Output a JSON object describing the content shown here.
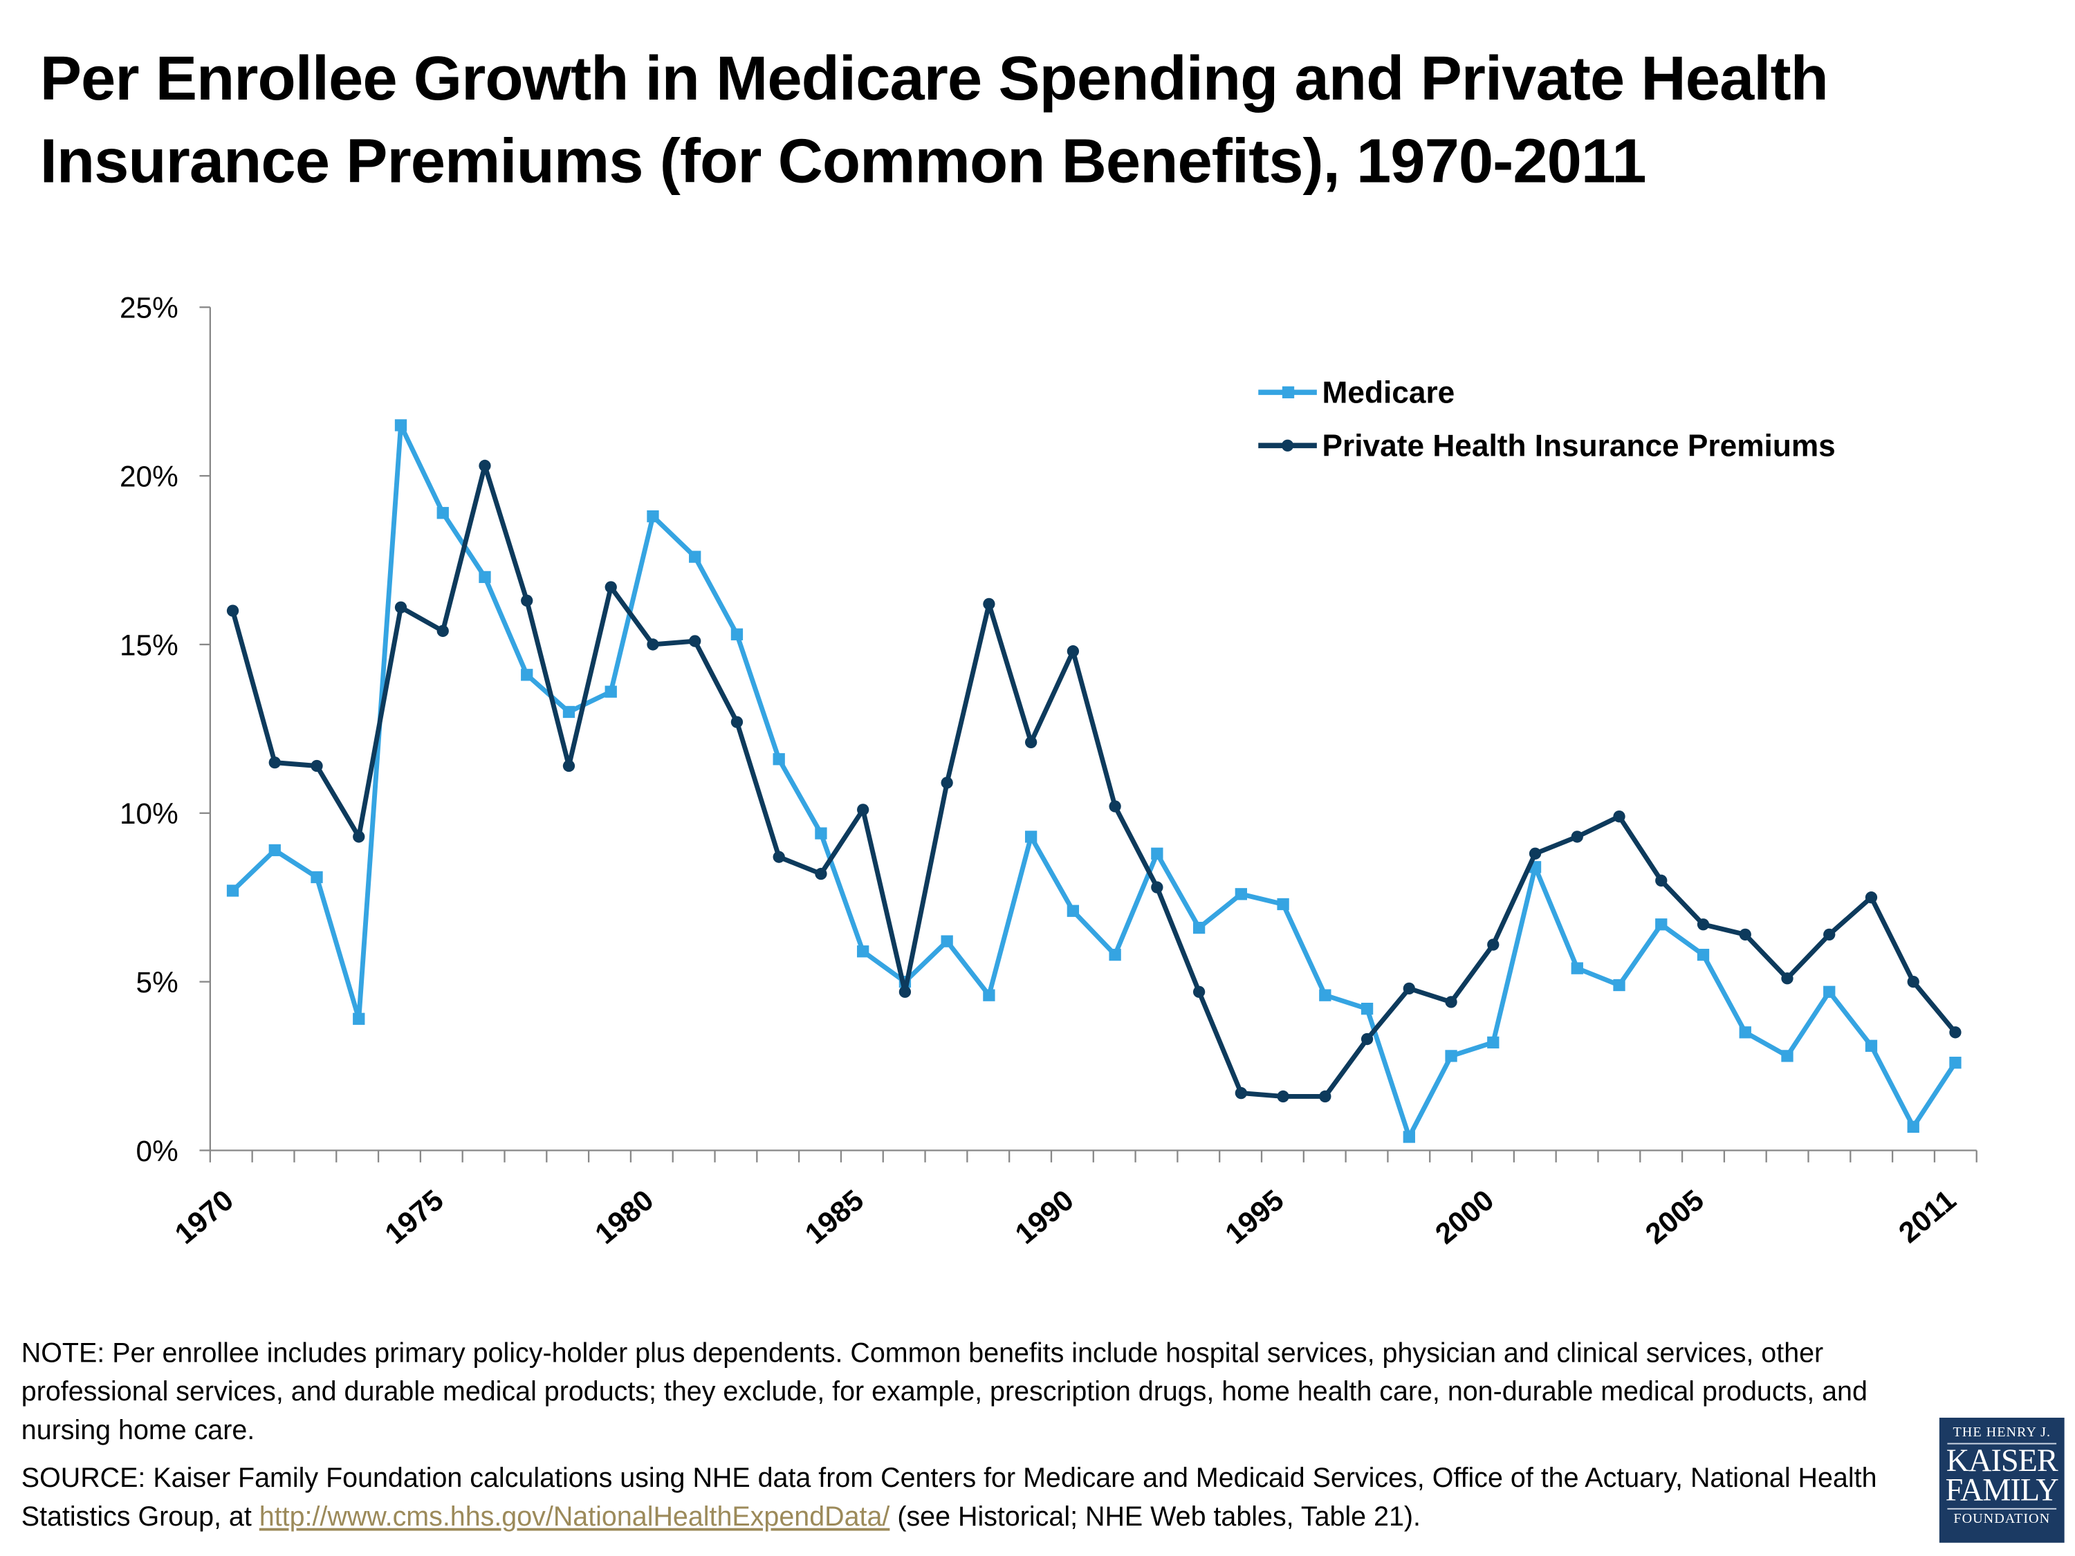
{
  "title": "Per Enrollee Growth in Medicare Spending and Private Health Insurance Premiums (for Common Benefits), 1970-2011",
  "note": "NOTE: Per enrollee includes primary policy-holder plus dependents. Common benefits include hospital services, physician and clinical services, other professional services, and durable medical products; they exclude, for example, prescription drugs, home health care, non-durable medical products, and nursing home care.",
  "source": {
    "prefix": "SOURCE: Kaiser Family Foundation calculations using NHE data from Centers for Medicare and Medicaid Services, Office of the Actuary, National Health Statistics Group, at ",
    "link": "http://www.cms.hhs.gov/NationalHealthExpendData/",
    "suffix": " (see Historical; NHE Web tables, Table 21)."
  },
  "logo": {
    "line1": "THE HENRY J.",
    "line2": "KAISER",
    "line3": "FAMILY",
    "line4": "FOUNDATION",
    "color": "#1b3a63"
  },
  "chart_data": {
    "type": "line",
    "title": "",
    "xlabel": "",
    "ylabel": "",
    "x": [
      1970,
      1971,
      1972,
      1973,
      1974,
      1975,
      1976,
      1977,
      1978,
      1979,
      1980,
      1981,
      1982,
      1983,
      1984,
      1985,
      1986,
      1987,
      1988,
      1989,
      1990,
      1991,
      1992,
      1993,
      1994,
      1995,
      1996,
      1997,
      1998,
      1999,
      2000,
      2001,
      2002,
      2003,
      2004,
      2005,
      2006,
      2007,
      2008,
      2009,
      2010,
      2011
    ],
    "x_tick_labels": [
      "1970",
      "1975",
      "1980",
      "1985",
      "1990",
      "1995",
      "2000",
      "2005",
      "2011"
    ],
    "y_tick_labels": [
      "0%",
      "5%",
      "10%",
      "15%",
      "20%",
      "25%"
    ],
    "ylim": [
      0,
      25
    ],
    "y_unit": "%",
    "grid": false,
    "legend_position": "top-right",
    "series": [
      {
        "name": "Medicare",
        "color": "#35a4e2",
        "marker": "square",
        "values": [
          7.7,
          8.9,
          8.1,
          3.9,
          21.5,
          18.9,
          17.0,
          14.1,
          13.0,
          13.6,
          18.8,
          17.6,
          15.3,
          11.6,
          9.4,
          5.9,
          5.0,
          6.2,
          4.6,
          9.3,
          7.1,
          5.8,
          8.8,
          6.6,
          7.6,
          7.3,
          4.6,
          4.2,
          0.4,
          2.8,
          3.2,
          8.4,
          5.4,
          4.9,
          6.7,
          5.8,
          3.5,
          2.8,
          4.7,
          3.1,
          0.7,
          2.6
        ]
      },
      {
        "name": "Private Health Insurance Premiums",
        "color": "#0d3a5c",
        "marker": "circle",
        "values": [
          16.0,
          11.5,
          11.4,
          9.3,
          16.1,
          15.4,
          20.3,
          16.3,
          11.4,
          16.7,
          15.0,
          15.1,
          12.7,
          8.7,
          8.2,
          10.1,
          4.7,
          10.9,
          16.2,
          12.1,
          14.8,
          10.2,
          7.8,
          4.7,
          1.7,
          1.6,
          1.6,
          3.3,
          4.8,
          4.4,
          6.1,
          8.8,
          9.3,
          9.9,
          8.0,
          6.7,
          6.4,
          5.1,
          6.4,
          7.5,
          5.0,
          3.5
        ]
      }
    ]
  }
}
